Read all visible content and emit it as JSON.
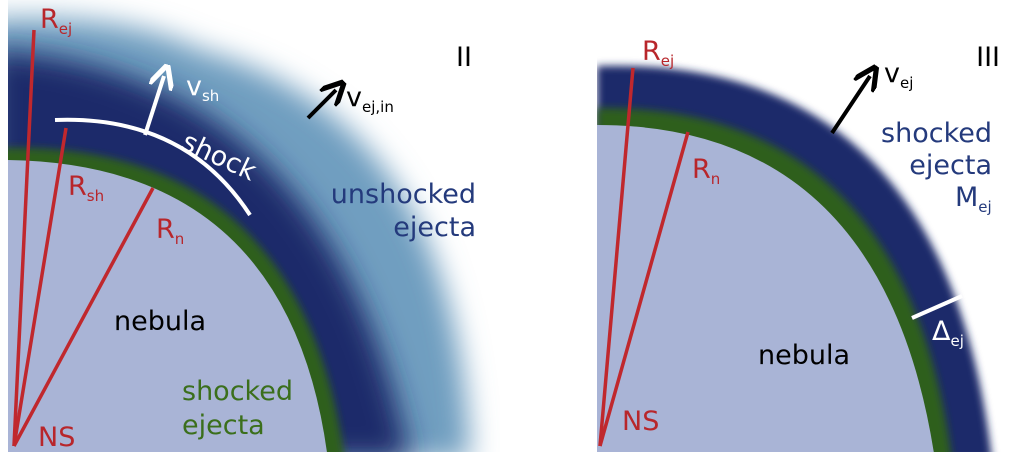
{
  "panel_ii": {
    "label": "II",
    "r_ej": {
      "main": "R",
      "sub": "ej"
    },
    "r_sh": {
      "main": "R",
      "sub": "sh"
    },
    "r_n": {
      "main": "R",
      "sub": "n"
    },
    "v_sh": {
      "main": "v",
      "sub": "sh"
    },
    "v_ej_in": {
      "main": "v",
      "sub": "ej,in"
    },
    "shock": "shock",
    "unshocked_ejecta": [
      "unshocked",
      "ejecta"
    ],
    "shocked_ejecta": [
      "shocked",
      "ejecta"
    ],
    "nebula": "nebula",
    "ns": "NS"
  },
  "panel_iii": {
    "label": "III",
    "r_ej": {
      "main": "R",
      "sub": "ej"
    },
    "r_n": {
      "main": "R",
      "sub": "n"
    },
    "v_ej": {
      "main": "v",
      "sub": "ej"
    },
    "shocked_ejecta": [
      "shocked",
      "ejecta"
    ],
    "m_ej": {
      "main": "M",
      "sub": "ej"
    },
    "delta_ej": {
      "main": "Δ",
      "sub": "ej"
    },
    "nebula": "nebula",
    "ns": "NS"
  }
}
